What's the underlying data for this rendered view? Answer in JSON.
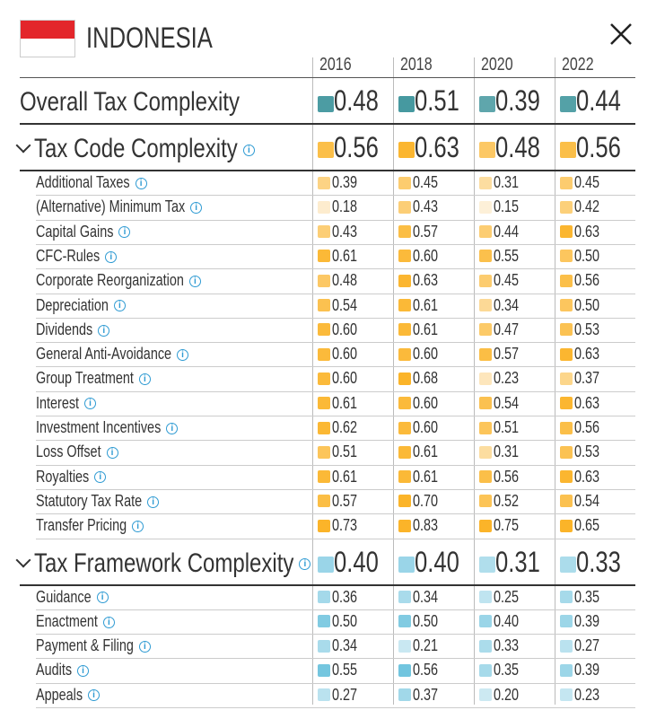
{
  "header": {
    "title": "INDONESIA"
  },
  "years": [
    "2016",
    "2018",
    "2020",
    "2022"
  ],
  "overall": {
    "label": "Overall Tax Complexity",
    "values": [
      "0.48",
      "0.51",
      "0.39",
      "0.44"
    ],
    "color": "#2a8a91",
    "light": "#8fc0c5"
  },
  "sections": [
    {
      "label": "Tax Code Complexity",
      "values": [
        "0.56",
        "0.63",
        "0.48",
        "0.56"
      ],
      "color": "#fbb429",
      "light": "#fdf0d8",
      "rows": [
        {
          "label": "Additional Taxes",
          "values": [
            "0.39",
            "0.45",
            "0.31",
            "0.45"
          ]
        },
        {
          "label": "(Alternative) Minimum Tax",
          "values": [
            "0.18",
            "0.43",
            "0.15",
            "0.42"
          ]
        },
        {
          "label": "Capital Gains",
          "values": [
            "0.43",
            "0.57",
            "0.44",
            "0.63"
          ]
        },
        {
          "label": "CFC-Rules",
          "values": [
            "0.61",
            "0.60",
            "0.55",
            "0.50"
          ]
        },
        {
          "label": "Corporate Reorganization",
          "values": [
            "0.48",
            "0.63",
            "0.45",
            "0.56"
          ]
        },
        {
          "label": "Depreciation",
          "values": [
            "0.54",
            "0.61",
            "0.34",
            "0.50"
          ]
        },
        {
          "label": "Dividends",
          "values": [
            "0.60",
            "0.61",
            "0.47",
            "0.53"
          ]
        },
        {
          "label": "General Anti-Avoidance",
          "values": [
            "0.60",
            "0.60",
            "0.57",
            "0.63"
          ]
        },
        {
          "label": "Group Treatment",
          "values": [
            "0.60",
            "0.68",
            "0.23",
            "0.37"
          ]
        },
        {
          "label": "Interest",
          "values": [
            "0.61",
            "0.60",
            "0.54",
            "0.63"
          ]
        },
        {
          "label": "Investment Incentives",
          "values": [
            "0.62",
            "0.60",
            "0.51",
            "0.56"
          ]
        },
        {
          "label": "Loss Offset",
          "values": [
            "0.51",
            "0.61",
            "0.31",
            "0.53"
          ]
        },
        {
          "label": "Royalties",
          "values": [
            "0.61",
            "0.61",
            "0.56",
            "0.63"
          ]
        },
        {
          "label": "Statutory Tax Rate",
          "values": [
            "0.57",
            "0.70",
            "0.52",
            "0.54"
          ]
        },
        {
          "label": "Transfer Pricing",
          "values": [
            "0.73",
            "0.83",
            "0.75",
            "0.65"
          ]
        }
      ]
    },
    {
      "label": "Tax Framework Complexity",
      "values": [
        "0.40",
        "0.40",
        "0.31",
        "0.33"
      ],
      "color": "#5bbcda",
      "light": "#d8eef5",
      "rows": [
        {
          "label": "Guidance",
          "values": [
            "0.36",
            "0.34",
            "0.25",
            "0.35"
          ]
        },
        {
          "label": "Enactment",
          "values": [
            "0.50",
            "0.50",
            "0.40",
            "0.39"
          ]
        },
        {
          "label": "Payment & Filing",
          "values": [
            "0.34",
            "0.21",
            "0.33",
            "0.27"
          ]
        },
        {
          "label": "Audits",
          "values": [
            "0.55",
            "0.56",
            "0.35",
            "0.39"
          ]
        },
        {
          "label": "Appeals",
          "values": [
            "0.27",
            "0.37",
            "0.20",
            "0.23"
          ]
        }
      ]
    }
  ]
}
